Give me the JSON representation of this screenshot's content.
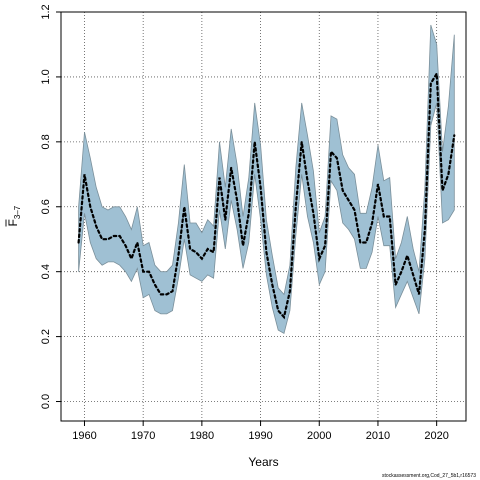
{
  "chart_data": {
    "type": "line",
    "title": "",
    "xlabel": "Years",
    "ylabel_main": "F",
    "ylabel_subscript": "3–7",
    "xlim": [
      1956,
      2025
    ],
    "ylim": [
      -0.06,
      1.2
    ],
    "x_ticks": [
      1960,
      1970,
      1980,
      1990,
      2000,
      2010,
      2020
    ],
    "y_ticks": [
      0.0,
      0.2,
      0.4,
      0.6,
      0.8,
      1.0,
      1.2
    ],
    "y_tick_labels": [
      "0.0",
      "0.2",
      "0.4",
      "0.6",
      "0.8",
      "1.0",
      "1.2"
    ],
    "grid": true,
    "band_color": "#9fc0d3",
    "band_edge_color": "#7a8f9a",
    "line_color": "#000000",
    "years": [
      1959,
      1960,
      1961,
      1962,
      1963,
      1964,
      1965,
      1966,
      1967,
      1968,
      1969,
      1970,
      1971,
      1972,
      1973,
      1974,
      1975,
      1976,
      1977,
      1978,
      1979,
      1980,
      1981,
      1982,
      1983,
      1984,
      1985,
      1986,
      1987,
      1988,
      1989,
      1990,
      1991,
      1992,
      1993,
      1994,
      1995,
      1996,
      1997,
      1998,
      1999,
      2000,
      2001,
      2002,
      2003,
      2004,
      2005,
      2006,
      2007,
      2008,
      2009,
      2010,
      2011,
      2012,
      2013,
      2014,
      2015,
      2016,
      2017,
      2018,
      2019,
      2020,
      2021,
      2022,
      2023
    ],
    "estimate": [
      0.49,
      0.7,
      0.6,
      0.54,
      0.5,
      0.5,
      0.51,
      0.51,
      0.48,
      0.44,
      0.49,
      0.4,
      0.4,
      0.36,
      0.33,
      0.33,
      0.34,
      0.45,
      0.6,
      0.47,
      0.46,
      0.44,
      0.47,
      0.46,
      0.69,
      0.56,
      0.72,
      0.62,
      0.48,
      0.58,
      0.8,
      0.66,
      0.46,
      0.36,
      0.28,
      0.26,
      0.34,
      0.6,
      0.8,
      0.68,
      0.58,
      0.44,
      0.48,
      0.77,
      0.75,
      0.65,
      0.62,
      0.59,
      0.49,
      0.49,
      0.55,
      0.67,
      0.57,
      0.57,
      0.36,
      0.4,
      0.45,
      0.39,
      0.33,
      0.53,
      0.98,
      1.01,
      0.65,
      0.7,
      0.82
    ],
    "upper": [
      0.6,
      0.83,
      0.75,
      0.66,
      0.6,
      0.59,
      0.6,
      0.6,
      0.57,
      0.53,
      0.6,
      0.48,
      0.49,
      0.42,
      0.4,
      0.4,
      0.42,
      0.55,
      0.73,
      0.55,
      0.55,
      0.52,
      0.56,
      0.54,
      0.8,
      0.66,
      0.84,
      0.73,
      0.57,
      0.69,
      0.92,
      0.79,
      0.56,
      0.45,
      0.35,
      0.33,
      0.42,
      0.72,
      0.92,
      0.82,
      0.71,
      0.52,
      0.57,
      0.88,
      0.87,
      0.76,
      0.72,
      0.7,
      0.58,
      0.58,
      0.66,
      0.79,
      0.68,
      0.69,
      0.44,
      0.49,
      0.57,
      0.47,
      0.4,
      0.66,
      1.16,
      1.1,
      0.77,
      0.91,
      1.13
    ],
    "lower": [
      0.4,
      0.58,
      0.49,
      0.44,
      0.42,
      0.43,
      0.43,
      0.42,
      0.4,
      0.37,
      0.41,
      0.32,
      0.33,
      0.28,
      0.27,
      0.27,
      0.28,
      0.38,
      0.5,
      0.39,
      0.38,
      0.37,
      0.39,
      0.38,
      0.59,
      0.47,
      0.62,
      0.53,
      0.41,
      0.49,
      0.7,
      0.56,
      0.39,
      0.29,
      0.22,
      0.21,
      0.28,
      0.51,
      0.7,
      0.57,
      0.49,
      0.36,
      0.4,
      0.68,
      0.65,
      0.55,
      0.53,
      0.5,
      0.41,
      0.41,
      0.46,
      0.57,
      0.48,
      0.48,
      0.29,
      0.33,
      0.37,
      0.32,
      0.27,
      0.44,
      0.85,
      0.92,
      0.55,
      0.56,
      0.59
    ]
  },
  "footer": {
    "source_label": "stockassessment.org,Cod_27_5b1,r16573"
  }
}
